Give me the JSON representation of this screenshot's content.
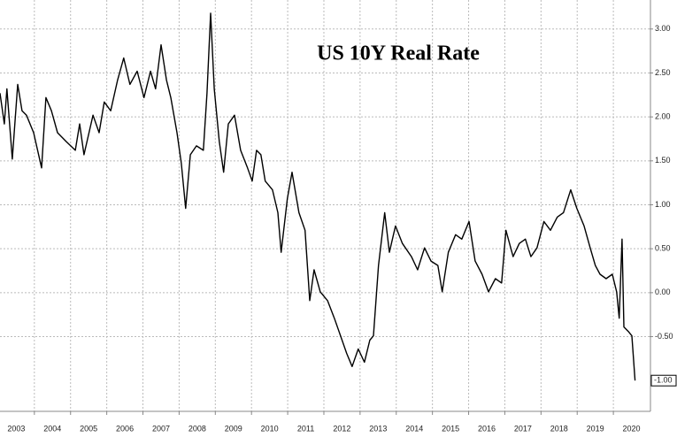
{
  "chart_data": {
    "type": "line",
    "title": "US 10Y Real Rate",
    "x": [
      2003.05,
      2003.17,
      2003.24,
      2003.39,
      2003.54,
      2003.66,
      2003.78,
      2003.98,
      2004.2,
      2004.32,
      2004.47,
      2004.64,
      2004.88,
      2005.13,
      2005.25,
      2005.37,
      2005.62,
      2005.79,
      2005.93,
      2006.11,
      2006.3,
      2006.47,
      2006.64,
      2006.84,
      2007.03,
      2007.21,
      2007.35,
      2007.5,
      2007.65,
      2007.77,
      2007.94,
      2008.06,
      2008.18,
      2008.31,
      2008.48,
      2008.67,
      2008.77,
      2008.87,
      2008.97,
      2009.11,
      2009.23,
      2009.36,
      2009.53,
      2009.7,
      2009.89,
      2010.02,
      2010.14,
      2010.26,
      2010.38,
      2010.58,
      2010.73,
      2010.82,
      2010.99,
      2011.12,
      2011.31,
      2011.48,
      2011.61,
      2011.73,
      2011.9,
      2012.1,
      2012.29,
      2012.46,
      2012.63,
      2012.78,
      2012.95,
      2013.12,
      2013.27,
      2013.37,
      2013.51,
      2013.68,
      2013.81,
      2013.98,
      2014.17,
      2014.42,
      2014.59,
      2014.78,
      2014.96,
      2015.15,
      2015.27,
      2015.44,
      2015.64,
      2015.81,
      2016.01,
      2016.18,
      2016.37,
      2016.55,
      2016.74,
      2016.91,
      2017.03,
      2017.23,
      2017.4,
      2017.57,
      2017.72,
      2017.89,
      2018.08,
      2018.26,
      2018.45,
      2018.62,
      2018.82,
      2018.99,
      2019.19,
      2019.36,
      2019.5,
      2019.63,
      2019.8,
      2019.97,
      2020.09,
      2020.16,
      2020.24,
      2020.29,
      2020.41,
      2020.51,
      2020.6
    ],
    "series": [
      {
        "name": "US 10Y Real Rate",
        "color": "#000000",
        "values": [
          2.27,
          1.92,
          2.32,
          1.52,
          2.37,
          2.07,
          2.02,
          1.82,
          1.42,
          2.22,
          2.07,
          1.82,
          1.72,
          1.62,
          1.92,
          1.57,
          2.02,
          1.82,
          2.17,
          2.07,
          2.42,
          2.67,
          2.37,
          2.52,
          2.22,
          2.52,
          2.32,
          2.82,
          2.42,
          2.22,
          1.82,
          1.47,
          0.96,
          1.57,
          1.67,
          1.62,
          2.27,
          3.18,
          2.32,
          1.72,
          1.37,
          1.92,
          2.02,
          1.62,
          1.42,
          1.27,
          1.62,
          1.57,
          1.27,
          1.17,
          0.91,
          0.46,
          1.07,
          1.37,
          0.91,
          0.71,
          -0.09,
          0.26,
          0.01,
          -0.09,
          -0.29,
          -0.49,
          -0.69,
          -0.84,
          -0.64,
          -0.79,
          -0.54,
          -0.49,
          0.31,
          0.91,
          0.46,
          0.76,
          0.56,
          0.41,
          0.26,
          0.51,
          0.36,
          0.31,
          0.01,
          0.46,
          0.66,
          0.61,
          0.81,
          0.36,
          0.21,
          0.01,
          0.16,
          0.11,
          0.71,
          0.41,
          0.56,
          0.61,
          0.41,
          0.51,
          0.81,
          0.71,
          0.86,
          0.91,
          1.17,
          0.96,
          0.76,
          0.51,
          0.31,
          0.21,
          0.16,
          0.21,
          0.01,
          -0.29,
          0.61,
          -0.39,
          -0.44,
          -0.49,
          -1.0
        ]
      }
    ],
    "xlim": [
      2003.05,
      2021.0
    ],
    "xticks": [
      2003,
      2004,
      2005,
      2006,
      2007,
      2008,
      2009,
      2010,
      2011,
      2012,
      2013,
      2014,
      2015,
      2016,
      2017,
      2018,
      2019,
      2020
    ],
    "ylim": [
      -1.35,
      3.33
    ],
    "yticks": [
      {
        "value": 3,
        "label": "3.00"
      },
      {
        "value": 2.5,
        "label": "2.50"
      },
      {
        "value": 2,
        "label": "2.00"
      },
      {
        "value": 1.5,
        "label": "1.50"
      },
      {
        "value": 1,
        "label": "1.00"
      },
      {
        "value": 0.5,
        "label": "0.50"
      },
      {
        "value": 0,
        "label": "0.00"
      },
      {
        "value": -0.5,
        "label": "-0.50"
      }
    ],
    "last_value": {
      "value": -1.0,
      "label": "-1.00"
    },
    "grid": true
  }
}
